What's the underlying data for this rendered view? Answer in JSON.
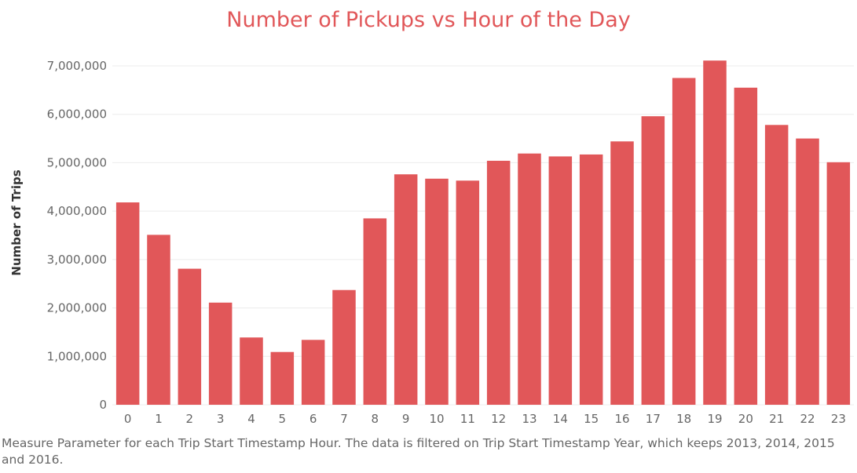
{
  "chart_data": {
    "type": "bar",
    "title": "Number of Pickups vs Hour of the Day",
    "xlabel": "",
    "ylabel": "Number of Trips",
    "categories": [
      "0",
      "1",
      "2",
      "3",
      "4",
      "5",
      "6",
      "7",
      "8",
      "9",
      "10",
      "11",
      "12",
      "13",
      "14",
      "15",
      "16",
      "17",
      "18",
      "19",
      "20",
      "21",
      "22",
      "23"
    ],
    "values": [
      4180000,
      3510000,
      2810000,
      2110000,
      1390000,
      1090000,
      1340000,
      2370000,
      3850000,
      4760000,
      4670000,
      4630000,
      5040000,
      5190000,
      5130000,
      5170000,
      5440000,
      5960000,
      6750000,
      7110000,
      6550000,
      5780000,
      5500000,
      5010000
    ],
    "yticks": [
      0,
      1000000,
      2000000,
      3000000,
      4000000,
      5000000,
      6000000,
      7000000
    ],
    "ytick_labels": [
      "0",
      "1,000,000",
      "2,000,000",
      "3,000,000",
      "4,000,000",
      "5,000,000",
      "6,000,000",
      "7,000,000"
    ],
    "ylim": [
      0,
      7400000
    ],
    "grid": true,
    "colors": {
      "bar": "#e15759",
      "title": "#e15759",
      "grid": "#ececec",
      "tick": "#666666"
    }
  },
  "caption": "Measure Parameter for each Trip Start Timestamp Hour. The data is filtered on Trip Start Timestamp Year, which keeps 2013, 2014, 2015 and 2016."
}
